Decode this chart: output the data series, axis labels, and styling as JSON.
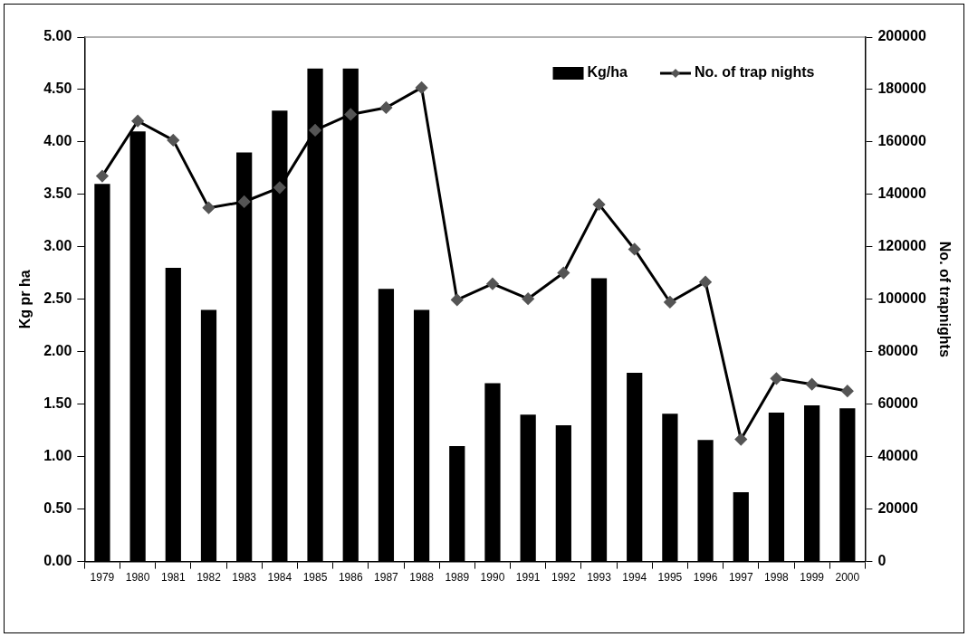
{
  "chart_data": {
    "type": "bar",
    "categories": [
      "1979",
      "1980",
      "1981",
      "1982",
      "1983",
      "1984",
      "1985",
      "1986",
      "1987",
      "1988",
      "1989",
      "1990",
      "1991",
      "1992",
      "1993",
      "1994",
      "1995",
      "1996",
      "1997",
      "1998",
      "1999",
      "2000"
    ],
    "series": [
      {
        "name": "Kg/ha",
        "color": "#000000",
        "values": [
          3.6,
          4.1,
          2.8,
          2.4,
          3.9,
          4.3,
          4.7,
          4.7,
          2.6,
          2.4,
          1.1,
          1.7,
          1.4,
          1.3,
          2.7,
          1.8,
          1.41,
          1.16,
          0.66,
          1.42,
          1.49,
          1.46
        ]
      },
      {
        "name": "No. of trap nights",
        "type": "line",
        "axis": "y2",
        "color": "#000000",
        "marker": "diamond",
        "values": [
          147000,
          168000,
          160700,
          134900,
          137200,
          142600,
          164500,
          170500,
          173100,
          180700,
          99800,
          105900,
          100200,
          110100,
          136200,
          119100,
          98900,
          106600,
          46600,
          69800,
          67600,
          65000
        ]
      }
    ],
    "ylabel": "Kg pr ha",
    "y2label": "No. of trapnights",
    "ylim": [
      0,
      5
    ],
    "yticks": [
      {
        "value": 0,
        "label": "0.00"
      },
      {
        "value": 0.5,
        "label": "0.50"
      },
      {
        "value": 1,
        "label": "1.00"
      },
      {
        "value": 1.5,
        "label": "1.50"
      },
      {
        "value": 2,
        "label": "2.00"
      },
      {
        "value": 2.5,
        "label": "2.50"
      },
      {
        "value": 3,
        "label": "3.00"
      },
      {
        "value": 3.5,
        "label": "3.50"
      },
      {
        "value": 4,
        "label": "4.00"
      },
      {
        "value": 4.5,
        "label": "4.50"
      },
      {
        "value": 5,
        "label": "5.00"
      }
    ],
    "y2lim": [
      0,
      200000
    ],
    "y2ticks": [
      0,
      20000,
      40000,
      60000,
      80000,
      100000,
      120000,
      140000,
      160000,
      180000,
      200000
    ],
    "grid": false,
    "legend": "top right",
    "line_style": "solid"
  }
}
